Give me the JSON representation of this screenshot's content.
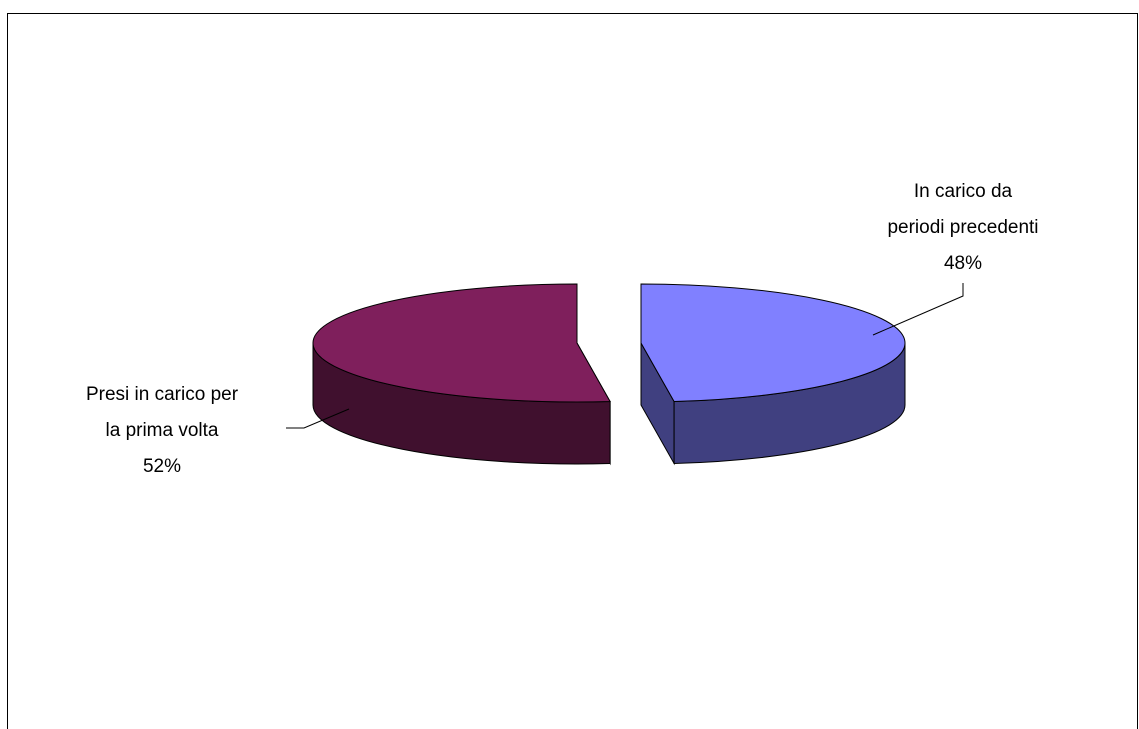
{
  "chart_data": {
    "type": "pie",
    "style": "3d-exploded",
    "title": "",
    "slices": [
      {
        "label_lines": [
          "In carico da",
          "periodi precedenti"
        ],
        "value": 48,
        "value_label": "48%",
        "color_top": "#8080FF",
        "color_side": "#404080"
      },
      {
        "label_lines": [
          "Presi in carico per",
          "la prima volta"
        ],
        "value": 52,
        "value_label": "52%",
        "color_top": "#7F1F5C",
        "color_side": "#40102E"
      }
    ],
    "legend": "none"
  }
}
